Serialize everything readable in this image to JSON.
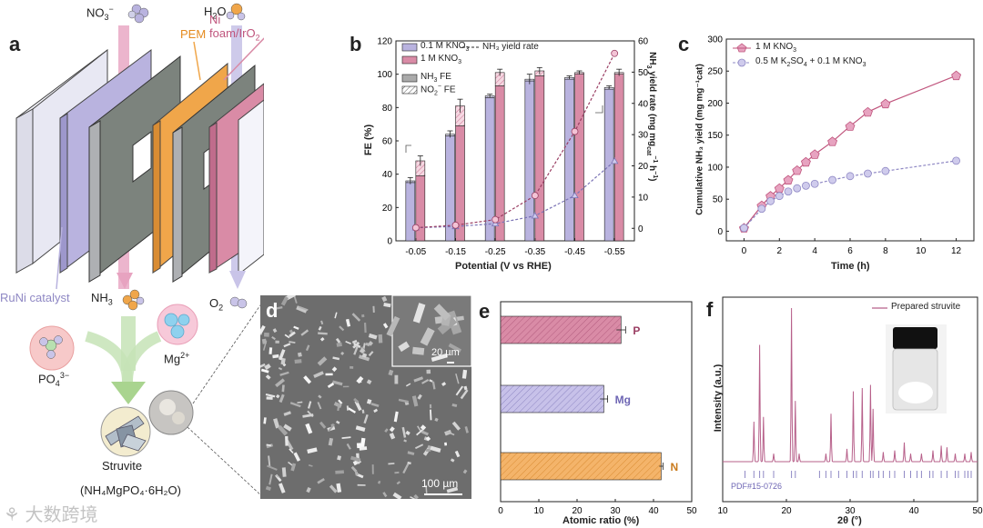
{
  "panel_labels": {
    "a": "a",
    "b": "b",
    "c": "c",
    "d": "d",
    "e": "e",
    "f": "f"
  },
  "panel_a": {
    "no3": "NO",
    "no3_sub": "3",
    "no3_sup": "−",
    "h2o": "H",
    "h2o_sub": "2",
    "h2o_tail": "O",
    "pem": "PEM",
    "anode": "Ni foam/IrO",
    "anode_sub": "2",
    "catalyst": "RuNi catalyst",
    "nh3": "NH",
    "nh3_sub": "3",
    "o2": "O",
    "o2_sub": "2",
    "po4": "PO",
    "po4_sub": "4",
    "po4_sup": "3−",
    "mg": "Mg",
    "mg_sup": "2+",
    "struvite": "Struvite",
    "formula": "(NH₄MgPO₄·6H₂O)",
    "colors": {
      "purple": "#b9b3df",
      "pink": "#d98ba6",
      "orange": "#f0a64a",
      "grey": "#7c837d"
    }
  },
  "chart_b": {
    "legend": {
      "s1_pre": "0.1 M KNO",
      "s1_sub": "3",
      "s2_pre": "1 M KNO",
      "s2_sub": "3",
      "nh3fe_pre": "NH",
      "nh3fe_sub": "3",
      "nh3fe_tail": " FE",
      "no2fe_pre": "NO",
      "no2fe_sub": "2",
      "no2fe_sup": "−",
      "no2fe_tail": " FE",
      "dash": "NH₃ yield rate"
    },
    "ylabel_left": "FE (%)",
    "ylabel_right_pre": "NH",
    "ylabel_right_sub": "3",
    "ylabel_right_mid": " yield rate (mg mg",
    "ylabel_right_sub2": "cat",
    "ylabel_right_sup": "−1",
    "ylabel_right_mid2": " h",
    "ylabel_right_sup2": "−1",
    "ylabel_right_end": ")",
    "xlabel": "Potential (V vs RHE)",
    "yticks_left": [
      "0",
      "20",
      "40",
      "60",
      "80",
      "100",
      "120"
    ],
    "yticks_right": [
      "0",
      "10",
      "20",
      "30",
      "40",
      "50",
      "60"
    ]
  },
  "chart_c": {
    "legend1_pre": "1 M KNO",
    "legend1_sub": "3",
    "legend2_pre": "0.5 M K",
    "legend2_sub1": "2",
    "legend2_mid": "SO",
    "legend2_sub2": "4",
    "legend2_end": " + 0.1 M KNO",
    "legend2_sub3": "3",
    "ylabel": "Cumulative NH₃ yield (mg mg⁻¹cat)",
    "xlabel": "Time (h)",
    "yticks": [
      "0",
      "50",
      "100",
      "150",
      "200",
      "250",
      "300"
    ],
    "xticks": [
      "0",
      "2",
      "4",
      "6",
      "8",
      "10",
      "12"
    ]
  },
  "panel_d": {
    "inset_scale": "20 µm",
    "main_scale": "100 µm"
  },
  "chart_e": {
    "xlabel": "Atomic ratio (%)",
    "xticks": [
      "0",
      "10",
      "20",
      "30",
      "40",
      "50"
    ]
  },
  "chart_f": {
    "legend": "Prepared struvite",
    "pdf": "PDF#15-0726",
    "ylabel": "Intensity (a.u.)",
    "xlabel": "2θ (°)",
    "xticks": [
      "10",
      "20",
      "30",
      "40",
      "50"
    ]
  },
  "watermark": "大数跨境",
  "chart_data": [
    {
      "type": "bar",
      "title": "",
      "xlabel": "Potential (V vs RHE)",
      "ylabel": "FE (%)",
      "ylim": [
        0,
        120
      ],
      "categories": [
        "-0.05",
        "-0.15",
        "-0.25",
        "-0.35",
        "-0.45",
        "-0.55"
      ],
      "series": [
        {
          "name": "0.1 M KNO3 NH3 FE",
          "values": [
            35,
            63,
            86,
            96,
            97,
            91
          ],
          "error": [
            2,
            2,
            1,
            3,
            1,
            1
          ]
        },
        {
          "name": "0.1 M KNO3 NO2- FE",
          "values": [
            1,
            1,
            1,
            1,
            1,
            1
          ]
        },
        {
          "name": "1 M KNO3 NH3 FE",
          "values": [
            39,
            69,
            93,
            99,
            100,
            100
          ],
          "error": [
            3,
            4,
            2,
            2,
            1,
            2
          ]
        },
        {
          "name": "1 M KNO3 NO2- FE",
          "values": [
            9,
            12,
            8,
            3,
            1,
            1
          ]
        }
      ],
      "secondary_axis": {
        "ylabel": "NH3 yield rate (mg mgcat-1 h-1)",
        "ylim": [
          -4,
          60
        ],
        "series": [
          {
            "name": "0.1 M KNO3 NH3 yield rate",
            "values": [
              0.2,
              0.6,
              1.5,
              4.0,
              10.5,
              21.5
            ]
          },
          {
            "name": "1 M KNO3 NH3 yield rate",
            "values": [
              0.2,
              1.0,
              2.8,
              10.5,
              31.0,
              56.0
            ]
          }
        ]
      }
    },
    {
      "type": "line",
      "xlabel": "Time (h)",
      "ylabel": "Cumulative NH3 yield (mg mgcat-1)",
      "xlim": [
        -1,
        13
      ],
      "ylim": [
        -15,
        300
      ],
      "series": [
        {
          "name": "1 M KNO3",
          "x": [
            0,
            1,
            1.5,
            2,
            2.5,
            3,
            3.5,
            4,
            5,
            6,
            7,
            8,
            12
          ],
          "values": [
            5,
            40,
            55,
            67,
            80,
            95,
            108,
            120,
            140,
            164,
            186,
            199,
            243
          ]
        },
        {
          "name": "0.5 M K2SO4 + 0.1 M KNO3",
          "x": [
            0,
            1,
            1.5,
            2,
            2.5,
            3,
            3.5,
            4,
            5,
            6,
            7,
            8,
            12
          ],
          "values": [
            5,
            35,
            47,
            55,
            62,
            67,
            71,
            74,
            80,
            86,
            90,
            94,
            110
          ]
        }
      ]
    },
    {
      "type": "bar",
      "orientation": "horizontal",
      "xlabel": "Atomic ratio (%)",
      "xlim": [
        0,
        50
      ],
      "categories": [
        "P",
        "Mg",
        "N"
      ],
      "values": [
        31.5,
        27,
        42
      ],
      "error": [
        1.2,
        1,
        0.5
      ]
    },
    {
      "type": "line",
      "xlabel": "2θ (°)",
      "ylabel": "Intensity (a.u.)",
      "xlim": [
        10,
        50
      ],
      "series": [
        {
          "name": "Prepared struvite",
          "peaks_x": [
            14.9,
            15.8,
            16.4,
            18.0,
            20.8,
            21.4,
            22.0,
            26.2,
            27.0,
            29.5,
            30.5,
            31.9,
            33.2,
            33.6,
            35.2,
            37.0,
            38.5,
            39.5,
            41.2,
            43.0,
            44.3,
            45.2,
            46.5,
            48.0,
            49.0
          ],
          "peaks_h": [
            0.25,
            0.73,
            0.28,
            0.05,
            0.96,
            0.38,
            0.05,
            0.05,
            0.3,
            0.08,
            0.44,
            0.46,
            0.48,
            0.33,
            0.06,
            0.07,
            0.12,
            0.05,
            0.05,
            0.07,
            0.1,
            0.09,
            0.05,
            0.05,
            0.06
          ]
        }
      ],
      "reference_pdf": "PDF#15-0726",
      "reference_x": [
        13.5,
        14.9,
        15.8,
        16.4,
        18.0,
        20.8,
        21.4,
        25.2,
        26.2,
        27.0,
        28.2,
        29.5,
        30.5,
        31.0,
        31.9,
        33.2,
        33.6,
        34.5,
        35.2,
        36.2,
        37.0,
        38.5,
        39.5,
        40.5,
        41.2,
        42.5,
        43.0,
        44.3,
        45.2,
        46.5,
        47.0,
        48.0,
        48.5,
        49.0
      ]
    }
  ]
}
